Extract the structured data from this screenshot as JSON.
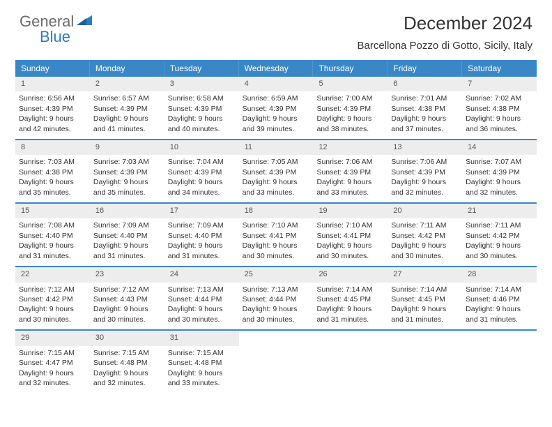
{
  "logo": {
    "text1": "General",
    "text2": "Blue"
  },
  "title": "December 2024",
  "location": "Barcellona Pozzo di Gotto, Sicily, Italy",
  "colors": {
    "header_bg": "#3a87c8",
    "daynum_bg": "#ededed",
    "row_divider": "#3a87c8",
    "logo_gray": "#6b6b6b",
    "logo_blue": "#2d7dc2"
  },
  "weekdays": [
    "Sunday",
    "Monday",
    "Tuesday",
    "Wednesday",
    "Thursday",
    "Friday",
    "Saturday"
  ],
  "weeks": [
    [
      {
        "n": "1",
        "sunrise": "6:56 AM",
        "sunset": "4:39 PM",
        "daylight": "9 hours and 42 minutes."
      },
      {
        "n": "2",
        "sunrise": "6:57 AM",
        "sunset": "4:39 PM",
        "daylight": "9 hours and 41 minutes."
      },
      {
        "n": "3",
        "sunrise": "6:58 AM",
        "sunset": "4:39 PM",
        "daylight": "9 hours and 40 minutes."
      },
      {
        "n": "4",
        "sunrise": "6:59 AM",
        "sunset": "4:39 PM",
        "daylight": "9 hours and 39 minutes."
      },
      {
        "n": "5",
        "sunrise": "7:00 AM",
        "sunset": "4:39 PM",
        "daylight": "9 hours and 38 minutes."
      },
      {
        "n": "6",
        "sunrise": "7:01 AM",
        "sunset": "4:38 PM",
        "daylight": "9 hours and 37 minutes."
      },
      {
        "n": "7",
        "sunrise": "7:02 AM",
        "sunset": "4:38 PM",
        "daylight": "9 hours and 36 minutes."
      }
    ],
    [
      {
        "n": "8",
        "sunrise": "7:03 AM",
        "sunset": "4:38 PM",
        "daylight": "9 hours and 35 minutes."
      },
      {
        "n": "9",
        "sunrise": "7:03 AM",
        "sunset": "4:39 PM",
        "daylight": "9 hours and 35 minutes."
      },
      {
        "n": "10",
        "sunrise": "7:04 AM",
        "sunset": "4:39 PM",
        "daylight": "9 hours and 34 minutes."
      },
      {
        "n": "11",
        "sunrise": "7:05 AM",
        "sunset": "4:39 PM",
        "daylight": "9 hours and 33 minutes."
      },
      {
        "n": "12",
        "sunrise": "7:06 AM",
        "sunset": "4:39 PM",
        "daylight": "9 hours and 33 minutes."
      },
      {
        "n": "13",
        "sunrise": "7:06 AM",
        "sunset": "4:39 PM",
        "daylight": "9 hours and 32 minutes."
      },
      {
        "n": "14",
        "sunrise": "7:07 AM",
        "sunset": "4:39 PM",
        "daylight": "9 hours and 32 minutes."
      }
    ],
    [
      {
        "n": "15",
        "sunrise": "7:08 AM",
        "sunset": "4:40 PM",
        "daylight": "9 hours and 31 minutes."
      },
      {
        "n": "16",
        "sunrise": "7:09 AM",
        "sunset": "4:40 PM",
        "daylight": "9 hours and 31 minutes."
      },
      {
        "n": "17",
        "sunrise": "7:09 AM",
        "sunset": "4:40 PM",
        "daylight": "9 hours and 31 minutes."
      },
      {
        "n": "18",
        "sunrise": "7:10 AM",
        "sunset": "4:41 PM",
        "daylight": "9 hours and 30 minutes."
      },
      {
        "n": "19",
        "sunrise": "7:10 AM",
        "sunset": "4:41 PM",
        "daylight": "9 hours and 30 minutes."
      },
      {
        "n": "20",
        "sunrise": "7:11 AM",
        "sunset": "4:42 PM",
        "daylight": "9 hours and 30 minutes."
      },
      {
        "n": "21",
        "sunrise": "7:11 AM",
        "sunset": "4:42 PM",
        "daylight": "9 hours and 30 minutes."
      }
    ],
    [
      {
        "n": "22",
        "sunrise": "7:12 AM",
        "sunset": "4:42 PM",
        "daylight": "9 hours and 30 minutes."
      },
      {
        "n": "23",
        "sunrise": "7:12 AM",
        "sunset": "4:43 PM",
        "daylight": "9 hours and 30 minutes."
      },
      {
        "n": "24",
        "sunrise": "7:13 AM",
        "sunset": "4:44 PM",
        "daylight": "9 hours and 30 minutes."
      },
      {
        "n": "25",
        "sunrise": "7:13 AM",
        "sunset": "4:44 PM",
        "daylight": "9 hours and 30 minutes."
      },
      {
        "n": "26",
        "sunrise": "7:14 AM",
        "sunset": "4:45 PM",
        "daylight": "9 hours and 31 minutes."
      },
      {
        "n": "27",
        "sunrise": "7:14 AM",
        "sunset": "4:45 PM",
        "daylight": "9 hours and 31 minutes."
      },
      {
        "n": "28",
        "sunrise": "7:14 AM",
        "sunset": "4:46 PM",
        "daylight": "9 hours and 31 minutes."
      }
    ],
    [
      {
        "n": "29",
        "sunrise": "7:15 AM",
        "sunset": "4:47 PM",
        "daylight": "9 hours and 32 minutes."
      },
      {
        "n": "30",
        "sunrise": "7:15 AM",
        "sunset": "4:48 PM",
        "daylight": "9 hours and 32 minutes."
      },
      {
        "n": "31",
        "sunrise": "7:15 AM",
        "sunset": "4:48 PM",
        "daylight": "9 hours and 33 minutes."
      },
      null,
      null,
      null,
      null
    ]
  ]
}
